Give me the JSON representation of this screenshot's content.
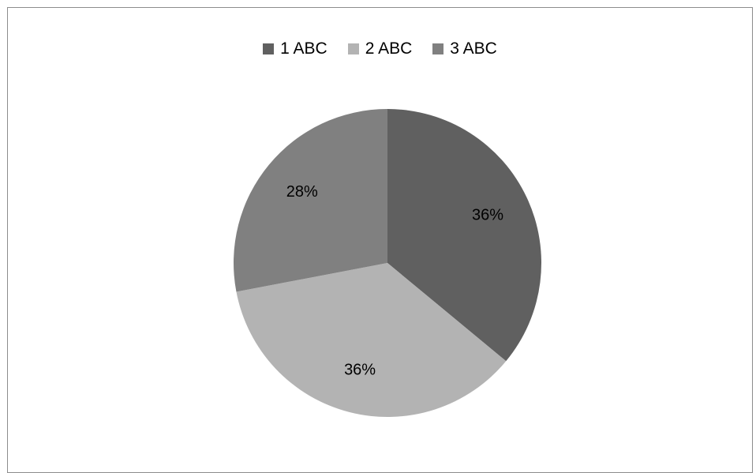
{
  "chart_data": {
    "type": "pie",
    "title": "",
    "categories": [
      "1 ABC",
      "2 ABC",
      "3 ABC"
    ],
    "values": [
      36,
      36,
      28
    ],
    "data_labels": [
      "36%",
      "36%",
      "28%"
    ],
    "colors": [
      "#606060",
      "#b3b3b3",
      "#808080"
    ],
    "legend_position": "top",
    "start_angle_deg": 0,
    "direction": "clockwise"
  }
}
